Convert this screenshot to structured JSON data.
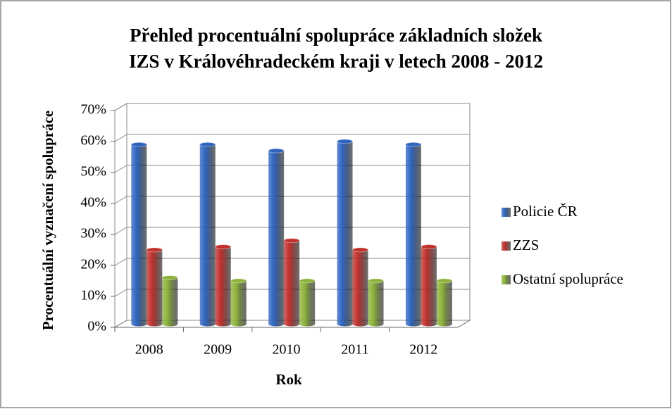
{
  "chart_data": {
    "type": "bar",
    "title": [
      "Přehled procentuální spolupráce základních složek",
      "IZS v Královéhradeckém kraji v letech 2008 - 2012"
    ],
    "x_label": "Rok",
    "y_label": "Procentuální vyznačení spolupráce",
    "categories": [
      "2008",
      "2009",
      "2010",
      "2011",
      "2012"
    ],
    "series": [
      {
        "name": "Policie ČR",
        "color": "#2e64c0",
        "values": [
          58,
          58,
          56,
          59,
          58
        ]
      },
      {
        "name": "ZZS",
        "color": "#c0302c",
        "values": [
          24,
          25,
          27,
          24,
          25
        ]
      },
      {
        "name": "Ostatní spolupráce",
        "color": "#8db33a",
        "values": [
          15,
          14,
          14,
          14,
          14
        ]
      }
    ],
    "ylim": [
      0,
      70
    ],
    "yticks": [
      {
        "value": 0,
        "label": "0%"
      },
      {
        "value": 10,
        "label": "10%"
      },
      {
        "value": 20,
        "label": "20%"
      },
      {
        "value": 30,
        "label": "30%"
      },
      {
        "value": 40,
        "label": "40%"
      },
      {
        "value": 50,
        "label": "50%"
      },
      {
        "value": 60,
        "label": "60%"
      },
      {
        "value": 70,
        "label": "70%"
      }
    ],
    "grid": true,
    "legend": "right"
  }
}
